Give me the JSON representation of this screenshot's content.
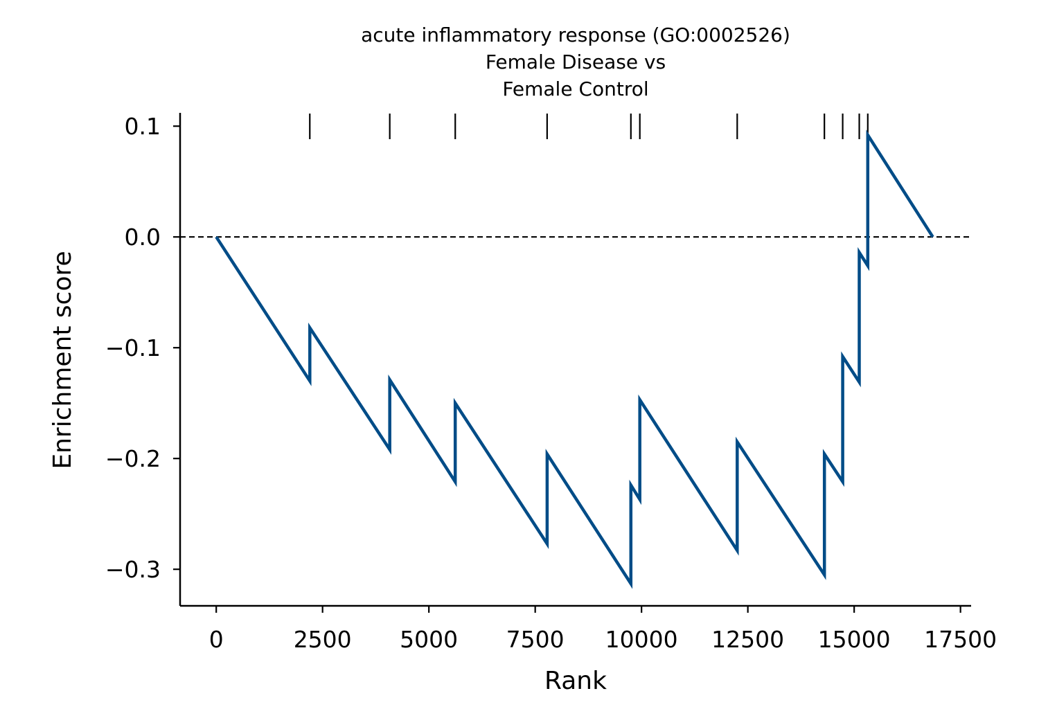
{
  "chart_data": {
    "type": "line",
    "title": "acute inflammatory response (GO:0002526)\nFemale Disease vs\nFemale Control",
    "xlabel": "Rank",
    "ylabel": "Enrichment score",
    "xlim": [
      -850,
      17750
    ],
    "ylim": [
      -0.333,
      0.112
    ],
    "xticks": [
      0,
      2500,
      5000,
      7500,
      10000,
      12500,
      15000,
      17500
    ],
    "xtick_labels": [
      "0",
      "2500",
      "5000",
      "7500",
      "10000",
      "12500",
      "15000",
      "17500"
    ],
    "yticks": [
      0.1,
      0.0,
      -0.1,
      -0.2,
      -0.3
    ],
    "ytick_labels": [
      "0.1",
      "0.0",
      "−0.1",
      "−0.2",
      "−0.3"
    ],
    "grid": false,
    "legend": "none",
    "reference_line": {
      "y": 0.0,
      "style": "dashed",
      "color": "#000000"
    },
    "line_color": "#004c87",
    "hit_positions": [
      2200,
      4080,
      5620,
      7780,
      9750,
      9960,
      12250,
      14300,
      14730,
      15120,
      15320
    ],
    "series": [
      {
        "x": [
          0,
          2200,
          2200,
          4080,
          4080,
          5620,
          5620,
          7780,
          7780,
          9750,
          9750,
          9960,
          9960,
          12250,
          12250,
          14300,
          14300,
          14730,
          14730,
          15120,
          15120,
          15320,
          15320,
          16850
        ],
        "y": [
          0.0,
          -0.13,
          -0.082,
          -0.192,
          -0.129,
          -0.221,
          -0.15,
          -0.277,
          -0.196,
          -0.313,
          -0.224,
          -0.237,
          -0.147,
          -0.283,
          -0.185,
          -0.305,
          -0.196,
          -0.221,
          -0.108,
          -0.131,
          -0.014,
          -0.026,
          0.092,
          0.0
        ]
      }
    ]
  }
}
